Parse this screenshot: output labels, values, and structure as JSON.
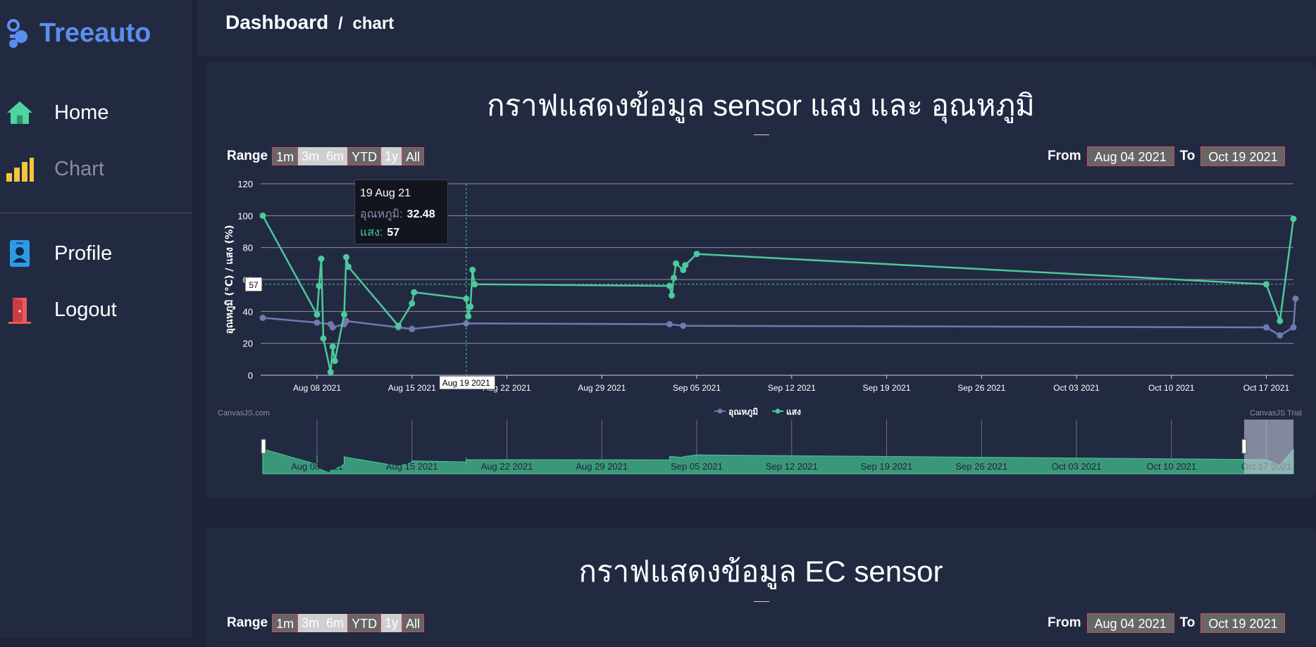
{
  "sidebar": {
    "logo_text": "Treeauto",
    "items": [
      {
        "label": "Home",
        "icon": "home-icon"
      },
      {
        "label": "Chart",
        "icon": "bar-chart-icon"
      },
      {
        "label": "Profile",
        "icon": "id-badge-icon"
      },
      {
        "label": "Logout",
        "icon": "door-exit-icon"
      }
    ]
  },
  "header": {
    "breadcrumb_root": "Dashboard",
    "breadcrumb_sep": "/",
    "breadcrumb_current": "chart"
  },
  "card1": {
    "title": "กราฟแสดงข้อมูล sensor แสง และ อุณหภูมิ",
    "range_label": "Range",
    "range_buttons": [
      "1m",
      "3m",
      "6m",
      "YTD",
      "1y",
      "All"
    ],
    "from_label": "From",
    "from_value": "Aug 04 2021",
    "to_label": "To",
    "to_value": "Oct 19 2021",
    "watermark_left": "CanvasJS.com",
    "watermark_right": "CanvasJS Trial",
    "tooltip": {
      "date": "19 Aug 21",
      "temp_key": "อุณหภูมิ:",
      "temp_value": "32.48",
      "light_key": "แสง:",
      "light_value": "57"
    },
    "crosshair_x_label": "Aug 19 2021",
    "crosshair_y_label": "57"
  },
  "card2": {
    "title": "กราฟแสดงข้อมูล EC sensor",
    "range_label": "Range",
    "range_buttons": [
      "1m",
      "3m",
      "6m",
      "YTD",
      "1y",
      "All"
    ],
    "from_label": "From",
    "from_value": "Aug 04 2021",
    "to_label": "To",
    "to_value": "Oct 19 2021"
  },
  "colors": {
    "temp": "#7378b0",
    "light": "#4cc99a",
    "accent": "#5b8ef0",
    "border_red": "#d04a55"
  },
  "chart_data": {
    "type": "line",
    "title": "",
    "xlabel": "",
    "ylabel": "อุณหภูมิ (°C) / แสง (%)",
    "ylim": [
      0,
      120
    ],
    "yticks": [
      0,
      20,
      40,
      60,
      80,
      100,
      120
    ],
    "xticks": [
      "Aug 08 2021",
      "Aug 15 2021",
      "Aug 22 2021",
      "Aug 29 2021",
      "Sep 05 2021",
      "Sep 12 2021",
      "Sep 19 2021",
      "Sep 26 2021",
      "Oct 03 2021",
      "Oct 10 2021",
      "Oct 17 2021"
    ],
    "xlim": [
      "2021-08-04",
      "2021-10-19"
    ],
    "grid": true,
    "legend_position": "bottom",
    "series": [
      {
        "name": "อุณหภูมิ",
        "points": [
          [
            "2021-08-04",
            36
          ],
          [
            "2021-08-08",
            33
          ],
          [
            "2021-08-09",
            32
          ],
          [
            "2021-08-09",
            30
          ],
          [
            "2021-08-10",
            32
          ],
          [
            "2021-08-10",
            34
          ],
          [
            "2021-08-14",
            30
          ],
          [
            "2021-08-15",
            29
          ],
          [
            "2021-08-19",
            32.48
          ],
          [
            "2021-09-03",
            32
          ],
          [
            "2021-09-04",
            31
          ],
          [
            "2021-10-17",
            30
          ],
          [
            "2021-10-18",
            25
          ],
          [
            "2021-10-19",
            30
          ],
          [
            "2021-10-19",
            48
          ]
        ]
      },
      {
        "name": "แสง",
        "points": [
          [
            "2021-08-04",
            100
          ],
          [
            "2021-08-08",
            38
          ],
          [
            "2021-08-08",
            56
          ],
          [
            "2021-08-08",
            73
          ],
          [
            "2021-08-08",
            23
          ],
          [
            "2021-08-09",
            2
          ],
          [
            "2021-08-09",
            18
          ],
          [
            "2021-08-09",
            9
          ],
          [
            "2021-08-10",
            38
          ],
          [
            "2021-08-10",
            74
          ],
          [
            "2021-08-10",
            68
          ],
          [
            "2021-08-14",
            31
          ],
          [
            "2021-08-15",
            45
          ],
          [
            "2021-08-15",
            52
          ],
          [
            "2021-08-19",
            48
          ],
          [
            "2021-08-19",
            37
          ],
          [
            "2021-08-19",
            43
          ],
          [
            "2021-08-19",
            66
          ],
          [
            "2021-08-19",
            57
          ],
          [
            "2021-09-03",
            56
          ],
          [
            "2021-09-03",
            50
          ],
          [
            "2021-09-03",
            61
          ],
          [
            "2021-09-03",
            70
          ],
          [
            "2021-09-04",
            66
          ],
          [
            "2021-09-04",
            69
          ],
          [
            "2021-09-05",
            76
          ],
          [
            "2021-10-17",
            57
          ],
          [
            "2021-10-18",
            34
          ],
          [
            "2021-10-19",
            98
          ]
        ]
      }
    ]
  }
}
